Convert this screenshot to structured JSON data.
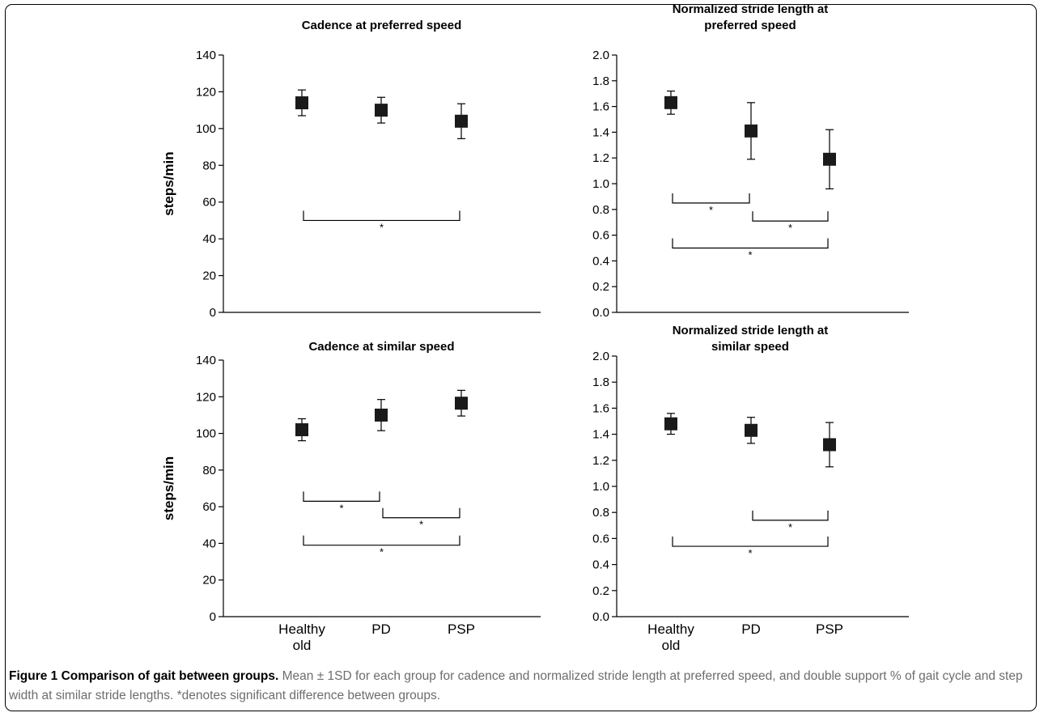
{
  "figure": {
    "label": "Figure 1",
    "title": "Comparison of gait between groups.",
    "caption": "Mean ± 1SD for each group for cadence and normalized stride length at preferred speed, and double support % of gait cycle and step width at similar stride lengths. *denotes significant difference between groups."
  },
  "chart_data": [
    {
      "type": "scatter",
      "title": "Cadence at preferred speed",
      "ylabel": "steps/min",
      "xlabel": "",
      "categories": [
        "Healthy old",
        "PD",
        "PSP"
      ],
      "values": [
        114,
        110,
        104
      ],
      "errors": [
        7,
        7,
        9.5
      ],
      "ylim": [
        0,
        140
      ],
      "yticks": [
        "0",
        "20",
        "40",
        "60",
        "80",
        "100",
        "120",
        "140"
      ],
      "show_xtick_labels": false,
      "significance": [
        {
          "from": 0,
          "to": 2,
          "y": 50,
          "label": "*"
        }
      ]
    },
    {
      "type": "scatter",
      "title": "Normalized stride length at preferred speed",
      "ylabel": "",
      "xlabel": "",
      "categories": [
        "Healthy old",
        "PD",
        "PSP"
      ],
      "values": [
        1.63,
        1.41,
        1.19
      ],
      "errors": [
        0.09,
        0.22,
        0.23
      ],
      "ylim": [
        0,
        2.0
      ],
      "yticks": [
        "0.0",
        "0.2",
        "0.4",
        "0.6",
        "0.8",
        "1.0",
        "1.2",
        "1.4",
        "1.6",
        "1.8",
        "2.0"
      ],
      "show_xtick_labels": false,
      "significance": [
        {
          "from": 0,
          "to": 1,
          "y": 0.85,
          "label": "*"
        },
        {
          "from": 1,
          "to": 2,
          "y": 0.71,
          "label": "*"
        },
        {
          "from": 0,
          "to": 2,
          "y": 0.5,
          "label": "*"
        }
      ]
    },
    {
      "type": "scatter",
      "title": "Cadence at similar speed",
      "ylabel": "steps/min",
      "xlabel": "",
      "categories": [
        "Healthy old",
        "PD",
        "PSP"
      ],
      "values": [
        102,
        110,
        116.5
      ],
      "errors": [
        6,
        8.5,
        7
      ],
      "ylim": [
        0,
        140
      ],
      "yticks": [
        "0",
        "20",
        "40",
        "60",
        "80",
        "100",
        "120",
        "140"
      ],
      "show_xtick_labels": true,
      "significance": [
        {
          "from": 0,
          "to": 1,
          "y": 63,
          "label": "*"
        },
        {
          "from": 1,
          "to": 2,
          "y": 54,
          "label": "*"
        },
        {
          "from": 0,
          "to": 2,
          "y": 39,
          "label": "*"
        }
      ]
    },
    {
      "type": "scatter",
      "title": "Normalized stride length at similar speed",
      "ylabel": "",
      "xlabel": "",
      "categories": [
        "Healthy old",
        "PD",
        "PSP"
      ],
      "values": [
        1.48,
        1.43,
        1.32
      ],
      "errors": [
        0.08,
        0.1,
        0.17
      ],
      "ylim": [
        0,
        2.0
      ],
      "yticks": [
        "0.0",
        "0.2",
        "0.4",
        "0.6",
        "0.8",
        "1.0",
        "1.2",
        "1.4",
        "1.6",
        "1.8",
        "2.0"
      ],
      "show_xtick_labels": true,
      "significance": [
        {
          "from": 1,
          "to": 2,
          "y": 0.74,
          "label": "*"
        },
        {
          "from": 0,
          "to": 2,
          "y": 0.54,
          "label": "*"
        }
      ]
    }
  ]
}
